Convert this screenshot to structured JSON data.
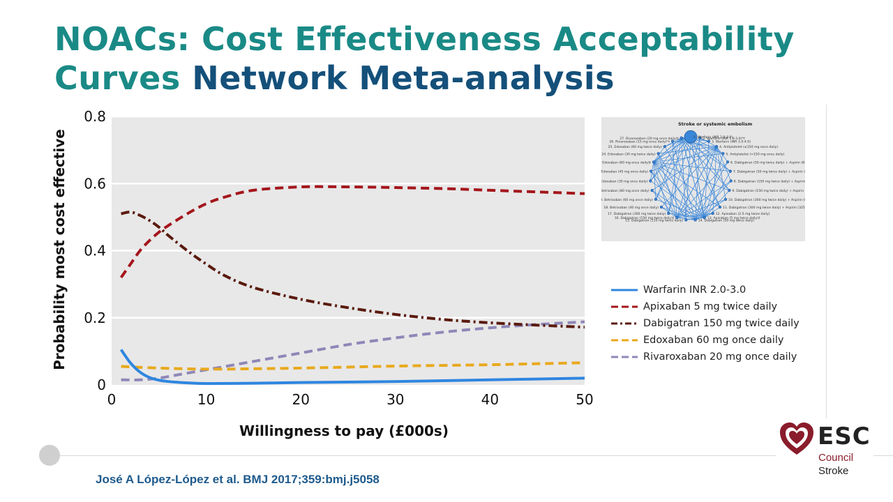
{
  "slide": {
    "title_line1": "NOACs: Cost Effectiveness Acceptability",
    "title_line2a": "Curves",
    "title_line2b": "Network Meta-analysis",
    "citation": "José A López-López et al. BMJ 2017;359:bmj.j5058"
  },
  "logo": {
    "word": "ESC",
    "sub1": "Council",
    "sub2": "Stroke",
    "color": "#8a1c2b"
  },
  "inset": {
    "title": "Stroke or systemic embolism",
    "node_color": "#3a86d8",
    "labels": [
      "1. Warfarin (INR 2.0-3.0)",
      "2. Warfarin (INR 1.6-3.0)*†",
      "3. Warfarin (INR 3.0-4.0)",
      "4. Antiplatelet (≤150 mg once daily)",
      "5. Antiplatelet (>150 mg once daily)",
      "6. Dabigatran (50 mg twice daily) + Aspirin (81 mg once daily)",
      "7. Dabigatran (50 mg twice daily) + Aspirin (325 mg once daily)",
      "8. Dabigatran (150 mg twice daily) + Aspirin (81 mg once daily)",
      "9. Dabigatran (150 mg twice daily) + Aspirin (325 mg once daily)",
      "10. Dabigatran (300 mg twice daily) + Aspirin (81 mg once daily)",
      "11. Dabigatran (300 mg twice daily) + Aspirin (325 mg once daily)",
      "12. Apixaban (2.5 mg twice daily)",
      "13. Apixaban (5 mg twice daily)‡",
      "14. Dabigatran (50 mg twice daily)",
      "15. Dabigatran (110 mg twice daily)",
      "16. Dabigatran (150 mg twice daily)‡",
      "17. Dabigatran (300 mg twice daily)",
      "18. Betrixaban (40 mg once daily)",
      "19. Betrixaban (60 mg once daily)",
      "20. Betrixaban (80 mg once daily)",
      "21. Edoxaban (30 mg once daily)",
      "22. Edoxaban (45 mg once daily)",
      "23. Edoxaban (60 mg once daily)‡",
      "24. Edoxaban (30 mg twice daily)",
      "25. Edoxaban (60 mg twice daily)",
      "26. Rivaroxaban (15 mg once daily)*†",
      "27. Rivaroxaban (20 mg once daily)‡"
    ]
  },
  "chart_data": {
    "type": "line",
    "title": "",
    "xlabel": "Willingness to pay (£000s)",
    "ylabel": "Probability most cost effective",
    "xlim": [
      0,
      50
    ],
    "ylim": [
      0,
      0.8
    ],
    "xticks": [
      0,
      10,
      20,
      30,
      40,
      50
    ],
    "yticks": [
      0,
      0.2,
      0.4,
      0.6,
      0.8
    ],
    "ytick_labels": [
      "0",
      "0.2",
      "0.4",
      "0.6",
      "0.8"
    ],
    "grid": "horizontal",
    "legend_position": "right",
    "series": [
      {
        "name": "Warfarin INR 2.0-3.0",
        "color": "#2f86e0",
        "dash": "solid",
        "x": [
          1,
          2,
          3,
          4,
          5,
          6,
          8,
          10,
          15,
          20,
          30,
          40,
          50
        ],
        "y": [
          0.105,
          0.065,
          0.038,
          0.022,
          0.014,
          0.01,
          0.006,
          0.004,
          0.005,
          0.007,
          0.01,
          0.015,
          0.02
        ]
      },
      {
        "name": "Apixaban 5 mg twice daily",
        "color": "#a4161c",
        "dash": "dash",
        "x": [
          1,
          2,
          3,
          4,
          5,
          6,
          8,
          10,
          12,
          15,
          20,
          25,
          30,
          35,
          40,
          45,
          50
        ],
        "y": [
          0.32,
          0.36,
          0.4,
          0.43,
          0.455,
          0.475,
          0.51,
          0.54,
          0.56,
          0.58,
          0.59,
          0.59,
          0.588,
          0.585,
          0.58,
          0.575,
          0.57
        ]
      },
      {
        "name": "Dabigatran 150 mg twice daily",
        "color": "#5a1a0e",
        "dash": "dashdot",
        "x": [
          1,
          2,
          3,
          4,
          5,
          6,
          8,
          10,
          12,
          15,
          20,
          25,
          30,
          35,
          40,
          45,
          50
        ],
        "y": [
          0.51,
          0.515,
          0.505,
          0.49,
          0.47,
          0.445,
          0.4,
          0.36,
          0.325,
          0.29,
          0.255,
          0.23,
          0.21,
          0.195,
          0.185,
          0.178,
          0.172
        ]
      },
      {
        "name": "Edoxaban 60 mg once daily",
        "color": "#e8a91e",
        "dash": "dash",
        "x": [
          1,
          5,
          10,
          15,
          20,
          25,
          30,
          35,
          40,
          45,
          50
        ],
        "y": [
          0.055,
          0.05,
          0.047,
          0.048,
          0.05,
          0.053,
          0.056,
          0.058,
          0.06,
          0.063,
          0.066
        ]
      },
      {
        "name": "Rivaroxaban 20 mg once daily",
        "color": "#8f87b8",
        "dash": "dash",
        "x": [
          1,
          3,
          5,
          7,
          10,
          13,
          16,
          20,
          25,
          30,
          35,
          40,
          45,
          50
        ],
        "y": [
          0.015,
          0.015,
          0.02,
          0.03,
          0.045,
          0.06,
          0.075,
          0.095,
          0.12,
          0.14,
          0.157,
          0.17,
          0.18,
          0.188
        ]
      }
    ]
  }
}
